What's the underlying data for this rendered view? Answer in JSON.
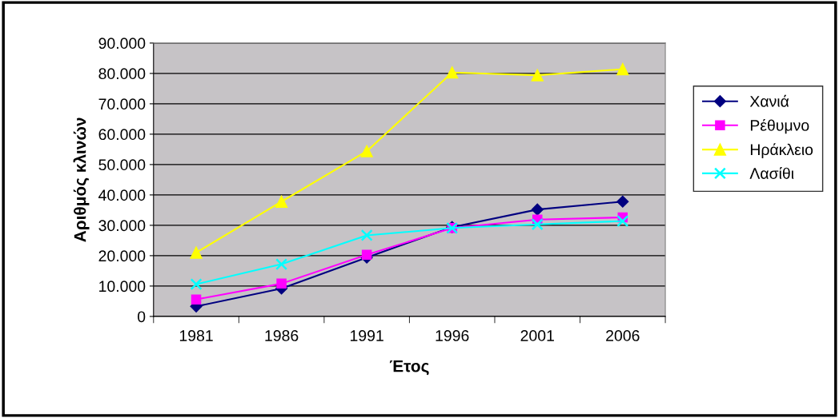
{
  "chart_data": {
    "type": "line",
    "xlabel": "Έτος",
    "ylabel": "Αριθμός κλινών",
    "categories": [
      "1981",
      "1986",
      "1991",
      "1996",
      "2001",
      "2006"
    ],
    "series": [
      {
        "name": "Χανιά",
        "color": "#000080",
        "marker": "diamond",
        "values": [
          3300,
          9200,
          19400,
          29400,
          35200,
          37800
        ]
      },
      {
        "name": "Ρέθυμνο",
        "color": "#ff00ff",
        "marker": "square",
        "values": [
          5600,
          10800,
          20300,
          29100,
          31900,
          32600
        ]
      },
      {
        "name": "Ηράκλειο",
        "color": "#ffff00",
        "marker": "triangle",
        "values": [
          21000,
          37800,
          54400,
          80300,
          79400,
          81400
        ]
      },
      {
        "name": "Λασίθι",
        "color": "#00ffff",
        "marker": "cross",
        "values": [
          10600,
          17200,
          26700,
          29100,
          30300,
          31400
        ]
      }
    ],
    "ylim": [
      0,
      90000
    ],
    "yticks": [
      {
        "value": 0,
        "label": "0"
      },
      {
        "value": 10000,
        "label": "10.000"
      },
      {
        "value": 20000,
        "label": "20.000"
      },
      {
        "value": 30000,
        "label": "30.000"
      },
      {
        "value": 40000,
        "label": "40.000"
      },
      {
        "value": 50000,
        "label": "50.000"
      },
      {
        "value": 60000,
        "label": "60.000"
      },
      {
        "value": 70000,
        "label": "70.000"
      },
      {
        "value": 80000,
        "label": "80.000"
      },
      {
        "value": 90000,
        "label": "90.000"
      }
    ],
    "grid": "y",
    "legend": "right",
    "line_style": "solid"
  }
}
